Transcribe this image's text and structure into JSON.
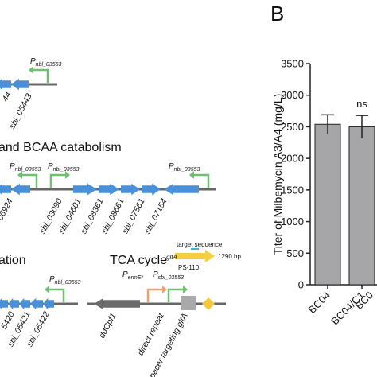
{
  "chart_data": {
    "type": "bar",
    "panel_label": "B",
    "ylabel": "Titer of Milbemycin A3/A4 (mg/L)",
    "categories": [
      "BC04",
      "BC04/C1",
      "BC0"
    ],
    "values": [
      2540,
      2500,
      null
    ],
    "errors": [
      150,
      180,
      null
    ],
    "color": "#a6a6a8",
    "ylim": [
      0,
      3500
    ],
    "yticks": [
      0,
      500,
      1000,
      1500,
      2000,
      2500,
      3000,
      3500
    ],
    "annotations": [
      {
        "text": "ns",
        "category": 1
      }
    ]
  },
  "diagram": {
    "section_titles": [
      "and BCAA catabolism",
      "ation",
      "TCA cycle"
    ],
    "promoters": [
      {
        "letter": "P",
        "sub": "nbl_03553"
      },
      {
        "letter": "P",
        "sub": "nbl_03553"
      },
      {
        "letter": "P",
        "sub": "nbl_03553"
      },
      {
        "letter": "P",
        "sub": "nbl_03553"
      },
      {
        "letter": "P",
        "sub": "nbl_03553"
      },
      {
        "letter": "P",
        "sub": "ermE*"
      },
      {
        "letter": "P",
        "sub": "sbi_03553"
      }
    ],
    "gene_labels": [
      "44",
      "sbi_05443",
      "06924",
      "sbi_03090",
      "sbi_04601",
      "sbi_08361",
      "sbi_08661",
      "sbi_07561",
      "sbi_07154",
      "5420",
      "sbi_05421",
      "sbi_05422",
      "ddCpf1",
      "direct repeat",
      "spacer targeting gltA"
    ],
    "inset": {
      "title": "target sequence",
      "gene": "gltA",
      "name": "PS-110",
      "length": "1290 bp"
    }
  }
}
